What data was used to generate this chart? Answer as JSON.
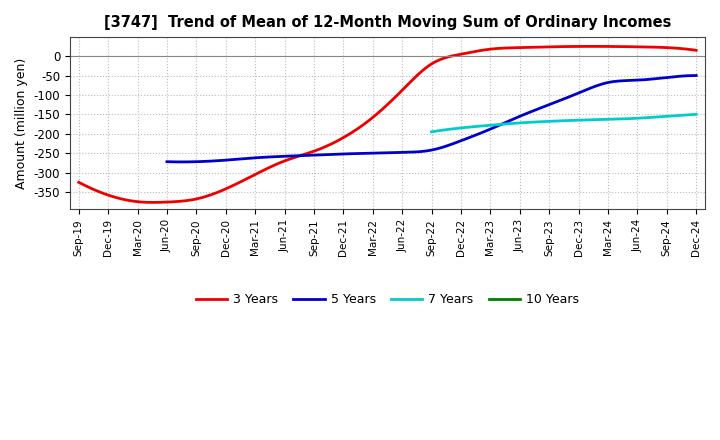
{
  "title": "[3747]  Trend of Mean of 12-Month Moving Sum of Ordinary Incomes",
  "ylabel": "Amount (million yen)",
  "yticks": [
    0,
    -50,
    -100,
    -150,
    -200,
    -250,
    -300,
    -350
  ],
  "ylim": [
    -395,
    50
  ],
  "background_color": "#ffffff",
  "grid_color": "#bbbbbb",
  "series": {
    "3 Years": {
      "color": "#ee0000",
      "x": [
        0,
        1,
        2,
        3,
        4,
        5,
        6,
        7,
        8,
        9,
        10,
        11,
        12,
        13,
        14,
        15,
        16,
        17,
        18,
        19,
        20,
        21
      ],
      "y": [
        -325,
        -358,
        -375,
        -376,
        -368,
        -342,
        -305,
        -270,
        -245,
        -210,
        -158,
        -88,
        -20,
        5,
        18,
        22,
        24,
        25,
        25,
        24,
        22,
        15
      ]
    },
    "5 Years": {
      "color": "#0000cc",
      "x": [
        3,
        4,
        5,
        6,
        7,
        8,
        9,
        10,
        11,
        12,
        13,
        14,
        15,
        16,
        17,
        18,
        19,
        20,
        21
      ],
      "y": [
        -272,
        -272,
        -268,
        -262,
        -258,
        -255,
        -252,
        -250,
        -248,
        -242,
        -218,
        -188,
        -155,
        -125,
        -95,
        -68,
        -62,
        -55,
        -50
      ]
    },
    "7 Years": {
      "color": "#00cccc",
      "x": [
        12,
        13,
        14,
        15,
        16,
        17,
        18,
        19,
        20,
        21
      ],
      "y": [
        -195,
        -185,
        -178,
        -172,
        -168,
        -165,
        -163,
        -160,
        -155,
        -150
      ]
    },
    "10 Years": {
      "color": "#008000",
      "x": [],
      "y": []
    }
  },
  "xtick_labels": [
    "Sep-19",
    "Dec-19",
    "Mar-20",
    "Jun-20",
    "Sep-20",
    "Dec-20",
    "Mar-21",
    "Jun-21",
    "Sep-21",
    "Dec-21",
    "Mar-22",
    "Jun-22",
    "Sep-22",
    "Dec-22",
    "Mar-23",
    "Jun-23",
    "Sep-23",
    "Dec-23",
    "Mar-24",
    "Jun-24",
    "Sep-24",
    "Dec-24"
  ],
  "legend_order": [
    "3 Years",
    "5 Years",
    "7 Years",
    "10 Years"
  ]
}
